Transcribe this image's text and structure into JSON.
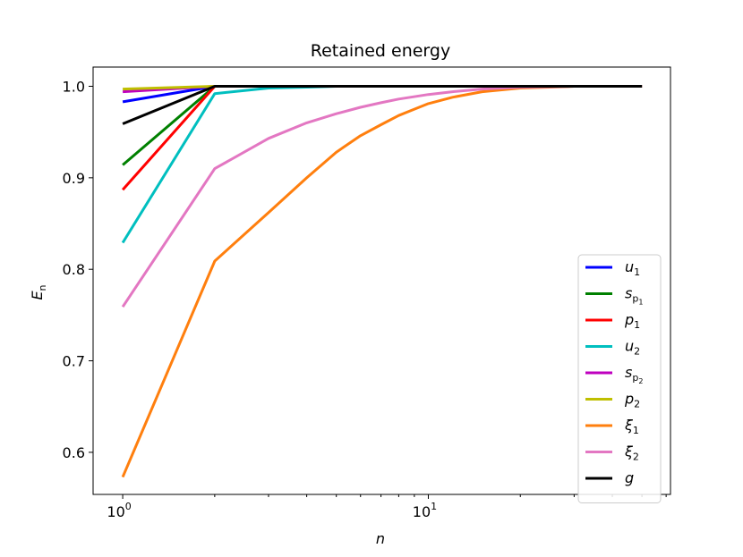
{
  "chart_data": {
    "type": "line",
    "title": "Retained energy",
    "xlabel": "n",
    "ylabel": "E",
    "ylabel_sub": "n",
    "xscale": "log",
    "xlim": [
      0.8,
      62
    ],
    "ylim": [
      0.554,
      1.021
    ],
    "yticks": [
      {
        "value": 0.6,
        "label": "0.6"
      },
      {
        "value": 0.7,
        "label": "0.7"
      },
      {
        "value": 0.8,
        "label": "0.8"
      },
      {
        "value": 0.9,
        "label": "0.9"
      },
      {
        "value": 1.0,
        "label": "1.0"
      }
    ],
    "xticks": [
      {
        "value": 1,
        "base": "10",
        "exp": "0"
      },
      {
        "value": 10,
        "base": "10",
        "exp": "1"
      }
    ],
    "legend_position": "lower right",
    "series": [
      {
        "name": "u1",
        "base": "u",
        "sub": "1",
        "subsub": "",
        "color": "#0000ff",
        "x": [
          1,
          2,
          3,
          50
        ],
        "y": [
          0.983,
          1.0,
          1.0,
          1.0
        ]
      },
      {
        "name": "sp1",
        "base": "s",
        "sub": "p",
        "subsub": "1",
        "color": "#008000",
        "x": [
          1,
          2,
          3,
          50
        ],
        "y": [
          0.914,
          1.0,
          1.0,
          1.0
        ]
      },
      {
        "name": "p1",
        "base": "p",
        "sub": "1",
        "subsub": "",
        "color": "#ff0000",
        "x": [
          1,
          2,
          3,
          50
        ],
        "y": [
          0.887,
          1.0,
          1.0,
          1.0
        ]
      },
      {
        "name": "u2",
        "base": "u",
        "sub": "2",
        "subsub": "",
        "color": "#00bfbf",
        "x": [
          1,
          2,
          3,
          4,
          5,
          50
        ],
        "y": [
          0.829,
          0.992,
          0.998,
          0.999,
          1.0,
          1.0
        ]
      },
      {
        "name": "sp2",
        "base": "s",
        "sub": "p",
        "subsub": "2",
        "color": "#bf00bf",
        "x": [
          1,
          2,
          3,
          50
        ],
        "y": [
          0.994,
          1.0,
          1.0,
          1.0
        ]
      },
      {
        "name": "p2",
        "base": "p",
        "sub": "2",
        "subsub": "",
        "color": "#bfbf00",
        "x": [
          1,
          2,
          3,
          50
        ],
        "y": [
          0.997,
          1.0,
          1.0,
          1.0
        ]
      },
      {
        "name": "xi1",
        "base": "ξ",
        "sub": "1",
        "subsub": "",
        "color": "#ff7f0e",
        "x": [
          1,
          2,
          3,
          4,
          5,
          6,
          7,
          8,
          9,
          10,
          12,
          15,
          20,
          25,
          30,
          40,
          50
        ],
        "y": [
          0.573,
          0.809,
          0.862,
          0.9,
          0.928,
          0.946,
          0.958,
          0.968,
          0.975,
          0.981,
          0.988,
          0.994,
          0.998,
          0.999,
          1.0,
          1.0,
          1.0
        ]
      },
      {
        "name": "xi2",
        "base": "ξ",
        "sub": "2",
        "subsub": "",
        "color": "#e377c2",
        "x": [
          1,
          2,
          3,
          4,
          5,
          6,
          7,
          8,
          10,
          12,
          15,
          20,
          30,
          50
        ],
        "y": [
          0.759,
          0.91,
          0.943,
          0.96,
          0.97,
          0.977,
          0.982,
          0.986,
          0.991,
          0.994,
          0.997,
          0.999,
          1.0,
          1.0
        ]
      },
      {
        "name": "g",
        "base": "g",
        "sub": "",
        "subsub": "",
        "color": "#000000",
        "x": [
          1,
          2,
          3,
          50
        ],
        "y": [
          0.959,
          1.0,
          1.0,
          1.0
        ]
      }
    ]
  }
}
